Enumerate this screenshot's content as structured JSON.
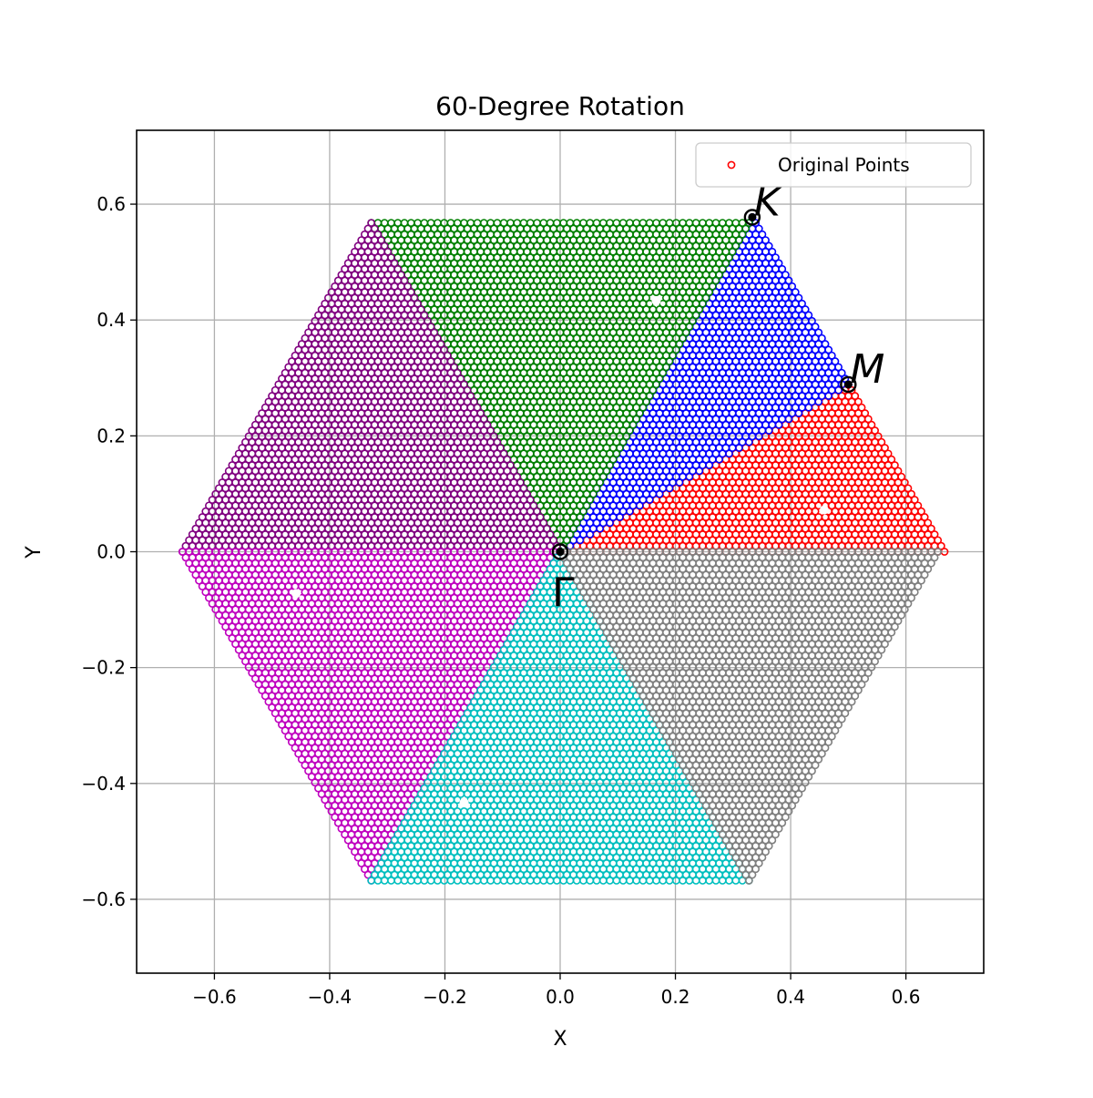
{
  "chart_data": {
    "type": "scatter",
    "title": "60-Degree Rotation",
    "xlabel": "X",
    "ylabel": "Y",
    "xlim": [
      -0.735,
      0.735
    ],
    "ylim": [
      -0.7275,
      0.7275
    ],
    "x_ticks": [
      -0.6,
      -0.4,
      -0.2,
      0.0,
      0.2,
      0.4,
      0.6
    ],
    "y_ticks": [
      -0.6,
      -0.4,
      -0.2,
      0.0,
      0.2,
      0.4,
      0.6
    ],
    "x_tick_labels": [
      "−0.6",
      "−0.4",
      "−0.2",
      "0.0",
      "0.2",
      "0.4",
      "0.6"
    ],
    "y_tick_labels": [
      "−0.6",
      "−0.4",
      "−0.2",
      "0.0",
      "0.2",
      "0.4",
      "0.6"
    ],
    "grid": true,
    "legend": {
      "position": "top-right",
      "entries": [
        "Original Points"
      ]
    },
    "marker": "open-circle",
    "sample_spacing": 0.0115,
    "series": [
      {
        "name": "Original Points",
        "color": "#ff0000",
        "vertices": [
          [
            0,
            0
          ],
          [
            0.6667,
            0
          ],
          [
            0.5,
            0.2887
          ]
        ]
      },
      {
        "color": "#0000ff",
        "vertices": [
          [
            0,
            0
          ],
          [
            0.5,
            0.2887
          ],
          [
            0.3333,
            0.5774
          ]
        ]
      },
      {
        "color": "#008000",
        "vertices": [
          [
            0,
            0
          ],
          [
            0.3333,
            0.5774
          ],
          [
            -0.3333,
            0.5774
          ]
        ]
      },
      {
        "color": "#800080",
        "vertices": [
          [
            0,
            0
          ],
          [
            -0.3333,
            0.5774
          ],
          [
            -0.6667,
            0
          ]
        ]
      },
      {
        "color": "#bf00bf",
        "vertices": [
          [
            0,
            0
          ],
          [
            -0.6667,
            0
          ],
          [
            -0.3333,
            -0.5774
          ]
        ]
      },
      {
        "color": "#00bfbf",
        "vertices": [
          [
            0,
            0
          ],
          [
            -0.3333,
            -0.5774
          ],
          [
            0.3333,
            -0.5774
          ]
        ]
      },
      {
        "color": "#808080",
        "vertices": [
          [
            0,
            0
          ],
          [
            0.3333,
            -0.5774
          ],
          [
            0.6667,
            0
          ]
        ]
      }
    ],
    "gaps": [
      [
        0.1667,
        0.433
      ],
      [
        0.4583,
        0.0722
      ],
      [
        -0.4583,
        -0.0722
      ],
      [
        -0.1667,
        -0.433
      ]
    ],
    "special_points": [
      {
        "label": "K",
        "x": 0.3333,
        "y": 0.5774,
        "label_side": "right"
      },
      {
        "label": "M",
        "x": 0.5,
        "y": 0.2887,
        "label_side": "right"
      },
      {
        "label": "Γ",
        "x": 0.0,
        "y": 0.0,
        "label_side": "below"
      }
    ]
  }
}
